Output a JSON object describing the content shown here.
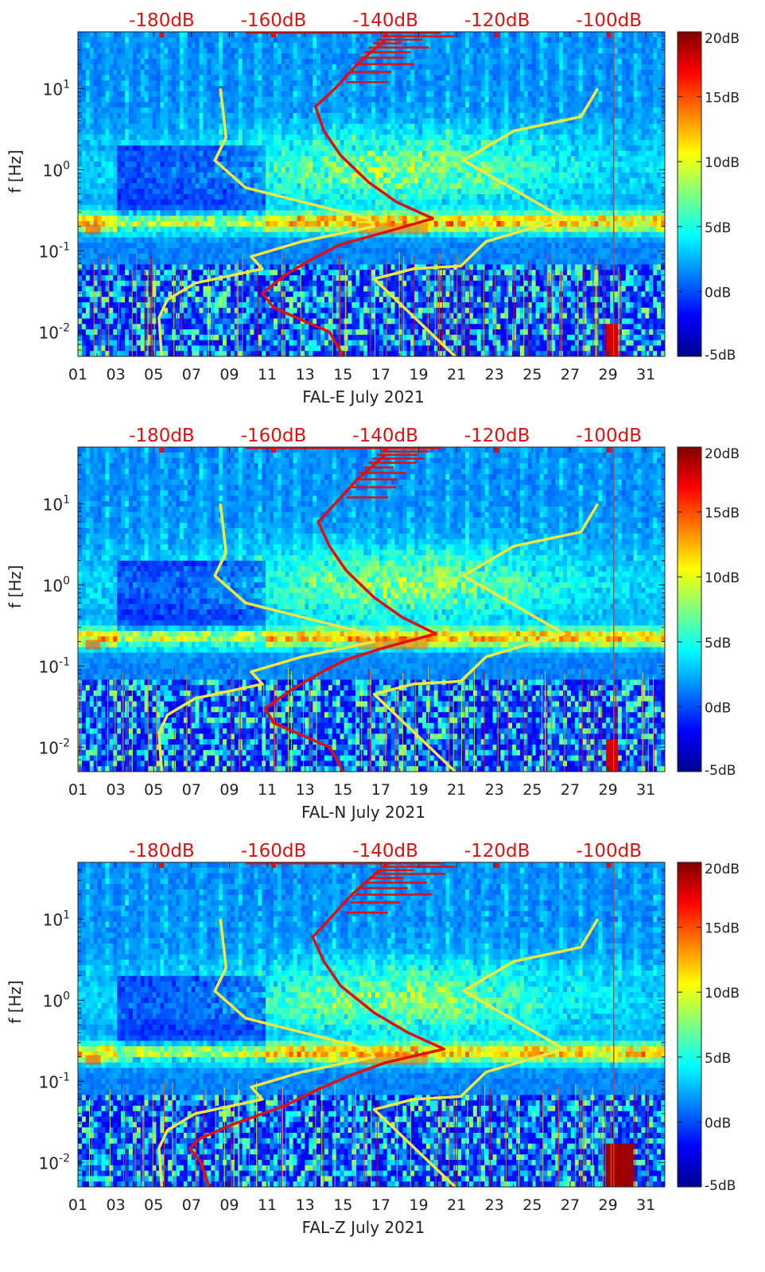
{
  "figure": {
    "yaxis_label": "f [Hz]",
    "xticks": [
      "01",
      "03",
      "05",
      "07",
      "09",
      "11",
      "13",
      "15",
      "17",
      "19",
      "21",
      "23",
      "25",
      "27",
      "29",
      "31"
    ],
    "yticks": [
      "10^{-2}",
      "10^{-1}",
      "10^{0}",
      "10^{1}"
    ],
    "top_axis_ticks": [
      "-180dB",
      "-160dB",
      "-140dB",
      "-120dB",
      "-100dB"
    ],
    "colorbar_ticks": [
      "20dB",
      "15dB",
      "10dB",
      "5dB",
      "0dB",
      "-5dB"
    ],
    "colors": {
      "red_curve": "#e01010",
      "yellow_curve": "#f0e840",
      "top_axis_text": "#e01010"
    }
  },
  "chart_data": [
    {
      "type": "heatmap",
      "xlabel": "FAL-E July 2021",
      "ylabel": "f [Hz]",
      "xlim": [
        1,
        32
      ],
      "ylim_hz": [
        0.005,
        50
      ],
      "y_scale": "log",
      "top_axis": {
        "label_values_db": [
          -180,
          -160,
          -140,
          -120,
          -100
        ]
      },
      "colorbar": {
        "range_db": [
          -5,
          20
        ],
        "ticks_db": [
          20,
          15,
          10,
          5,
          0,
          -5
        ],
        "colormap": "jet"
      },
      "red_curve_psd": [
        {
          "f": 0.005,
          "db": -147.5
        },
        {
          "f": 0.01,
          "db": -150
        },
        {
          "f": 0.02,
          "db": -160
        },
        {
          "f": 0.03,
          "db": -162
        },
        {
          "f": 0.05,
          "db": -158
        },
        {
          "f": 0.08,
          "db": -153
        },
        {
          "f": 0.12,
          "db": -148
        },
        {
          "f": 0.17,
          "db": -140
        },
        {
          "f": 0.25,
          "db": -131.5
        },
        {
          "f": 0.4,
          "db": -138
        },
        {
          "f": 0.7,
          "db": -143
        },
        {
          "f": 1.5,
          "db": -148
        },
        {
          "f": 3,
          "db": -151
        },
        {
          "f": 6,
          "db": -152.5
        },
        {
          "f": 10,
          "db": -149
        },
        {
          "f": 20,
          "db": -145
        },
        {
          "f": 40,
          "db": -140
        }
      ],
      "yellow_curve_left": [
        {
          "f": 0.005,
          "db": -180
        },
        {
          "f": 0.015,
          "db": -180.5
        },
        {
          "f": 0.025,
          "db": -179
        },
        {
          "f": 0.04,
          "db": -174
        },
        {
          "f": 0.06,
          "db": -162
        },
        {
          "f": 0.085,
          "db": -164
        },
        {
          "f": 0.13,
          "db": -155
        },
        {
          "f": 0.2,
          "db": -142
        },
        {
          "f": 0.25,
          "db": -143
        },
        {
          "f": 0.6,
          "db": -165
        },
        {
          "f": 1.3,
          "db": -170.5
        },
        {
          "f": 2.5,
          "db": -168.5
        },
        {
          "f": 10,
          "db": -169.5
        }
      ],
      "yellow_curve_right": [
        {
          "f": 0.005,
          "db": -127.5
        },
        {
          "f": 0.045,
          "db": -142
        },
        {
          "f": 0.06,
          "db": -135
        },
        {
          "f": 0.065,
          "db": -126.5
        },
        {
          "f": 0.13,
          "db": -122
        },
        {
          "f": 0.25,
          "db": -108
        },
        {
          "f": 1.3,
          "db": -126
        },
        {
          "f": 3,
          "db": -117
        },
        {
          "f": 4.5,
          "db": -105
        },
        {
          "f": 10,
          "db": -102
        }
      ]
    },
    {
      "type": "heatmap",
      "xlabel": "FAL-N July 2021",
      "ylabel": "f [Hz]",
      "xlim": [
        1,
        32
      ],
      "ylim_hz": [
        0.005,
        50
      ],
      "y_scale": "log",
      "top_axis": {
        "label_values_db": [
          -180,
          -160,
          -140,
          -120,
          -100
        ]
      },
      "colorbar": {
        "range_db": [
          -5,
          20
        ],
        "ticks_db": [
          20,
          15,
          10,
          5,
          0,
          -5
        ],
        "colormap": "jet"
      },
      "red_curve_psd": [
        {
          "f": 0.005,
          "db": -147.5
        },
        {
          "f": 0.01,
          "db": -150
        },
        {
          "f": 0.02,
          "db": -160
        },
        {
          "f": 0.03,
          "db": -161.5
        },
        {
          "f": 0.05,
          "db": -157
        },
        {
          "f": 0.08,
          "db": -152
        },
        {
          "f": 0.12,
          "db": -147
        },
        {
          "f": 0.17,
          "db": -140
        },
        {
          "f": 0.25,
          "db": -131
        },
        {
          "f": 0.4,
          "db": -137
        },
        {
          "f": 0.7,
          "db": -142
        },
        {
          "f": 1.5,
          "db": -147
        },
        {
          "f": 3,
          "db": -150
        },
        {
          "f": 6,
          "db": -152
        },
        {
          "f": 10,
          "db": -149
        },
        {
          "f": 20,
          "db": -145
        },
        {
          "f": 40,
          "db": -140
        }
      ],
      "yellow_curve_left": [
        {
          "f": 0.005,
          "db": -180
        },
        {
          "f": 0.015,
          "db": -180.5
        },
        {
          "f": 0.025,
          "db": -179
        },
        {
          "f": 0.04,
          "db": -174
        },
        {
          "f": 0.06,
          "db": -162
        },
        {
          "f": 0.085,
          "db": -164
        },
        {
          "f": 0.13,
          "db": -155
        },
        {
          "f": 0.2,
          "db": -142
        },
        {
          "f": 0.25,
          "db": -143
        },
        {
          "f": 0.6,
          "db": -165
        },
        {
          "f": 1.3,
          "db": -170.5
        },
        {
          "f": 2.5,
          "db": -168.5
        },
        {
          "f": 10,
          "db": -169.5
        }
      ],
      "yellow_curve_right": [
        {
          "f": 0.005,
          "db": -127.5
        },
        {
          "f": 0.045,
          "db": -142
        },
        {
          "f": 0.06,
          "db": -135
        },
        {
          "f": 0.065,
          "db": -126.5
        },
        {
          "f": 0.13,
          "db": -122
        },
        {
          "f": 0.25,
          "db": -108
        },
        {
          "f": 1.3,
          "db": -126
        },
        {
          "f": 3,
          "db": -117
        },
        {
          "f": 4.5,
          "db": -105
        },
        {
          "f": 10,
          "db": -102
        }
      ]
    },
    {
      "type": "heatmap",
      "xlabel": "FAL-Z July 2021",
      "ylabel": "f [Hz]",
      "xlim": [
        1,
        32
      ],
      "ylim_hz": [
        0.005,
        50
      ],
      "y_scale": "log",
      "top_axis": {
        "label_values_db": [
          -180,
          -160,
          -140,
          -120,
          -100
        ]
      },
      "colorbar": {
        "range_db": [
          -5,
          20
        ],
        "ticks_db": [
          20,
          15,
          10,
          5,
          0,
          -5
        ],
        "colormap": "jet"
      },
      "red_curve_psd": [
        {
          "f": 0.005,
          "db": -171.5
        },
        {
          "f": 0.01,
          "db": -173
        },
        {
          "f": 0.015,
          "db": -175
        },
        {
          "f": 0.02,
          "db": -173
        },
        {
          "f": 0.03,
          "db": -167
        },
        {
          "f": 0.05,
          "db": -158
        },
        {
          "f": 0.08,
          "db": -152
        },
        {
          "f": 0.12,
          "db": -146
        },
        {
          "f": 0.17,
          "db": -140
        },
        {
          "f": 0.25,
          "db": -129.5
        },
        {
          "f": 0.4,
          "db": -136
        },
        {
          "f": 0.7,
          "db": -142
        },
        {
          "f": 1.5,
          "db": -148
        },
        {
          "f": 3,
          "db": -151
        },
        {
          "f": 6,
          "db": -153
        },
        {
          "f": 10,
          "db": -150
        },
        {
          "f": 20,
          "db": -146
        },
        {
          "f": 40,
          "db": -141
        }
      ],
      "yellow_curve_left": [
        {
          "f": 0.005,
          "db": -180
        },
        {
          "f": 0.015,
          "db": -180.5
        },
        {
          "f": 0.025,
          "db": -179
        },
        {
          "f": 0.04,
          "db": -174
        },
        {
          "f": 0.06,
          "db": -162
        },
        {
          "f": 0.085,
          "db": -164
        },
        {
          "f": 0.13,
          "db": -155
        },
        {
          "f": 0.2,
          "db": -142
        },
        {
          "f": 0.25,
          "db": -143
        },
        {
          "f": 0.6,
          "db": -165
        },
        {
          "f": 1.3,
          "db": -170.5
        },
        {
          "f": 2.5,
          "db": -168.5
        },
        {
          "f": 10,
          "db": -169.5
        }
      ],
      "yellow_curve_right": [
        {
          "f": 0.005,
          "db": -127.5
        },
        {
          "f": 0.045,
          "db": -142
        },
        {
          "f": 0.06,
          "db": -135
        },
        {
          "f": 0.065,
          "db": -126.5
        },
        {
          "f": 0.13,
          "db": -122
        },
        {
          "f": 0.25,
          "db": -108
        },
        {
          "f": 1.3,
          "db": -126
        },
        {
          "f": 3,
          "db": -117
        },
        {
          "f": 4.5,
          "db": -105
        },
        {
          "f": 10,
          "db": -102
        }
      ]
    }
  ]
}
